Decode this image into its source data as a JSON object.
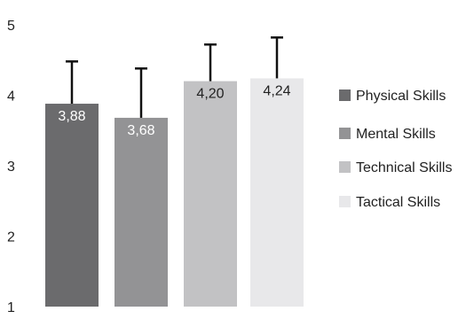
{
  "chart_data": {
    "type": "bar",
    "categories": [
      "Physical Skills",
      "Mental Skills",
      "Technical Skills",
      "Tactical Skills"
    ],
    "values": [
      3.88,
      3.68,
      4.2,
      4.24
    ],
    "value_labels": [
      "3,88",
      "3,68",
      "4,20",
      "4,24"
    ],
    "error_upper": [
      4.48,
      4.38,
      4.72,
      4.82
    ],
    "ylim": [
      1,
      5
    ],
    "yticks": [
      "1",
      "2",
      "3",
      "4",
      "5"
    ],
    "grid": false,
    "legend_position": "right",
    "colors": [
      "#6b6b6d",
      "#939395",
      "#c2c2c4",
      "#e8e8ea"
    ],
    "label_colors": [
      "#ffffff",
      "#ffffff",
      "#222222",
      "#222222"
    ],
    "error_bar_color": "#111111",
    "title": "",
    "xlabel": "",
    "ylabel": ""
  }
}
